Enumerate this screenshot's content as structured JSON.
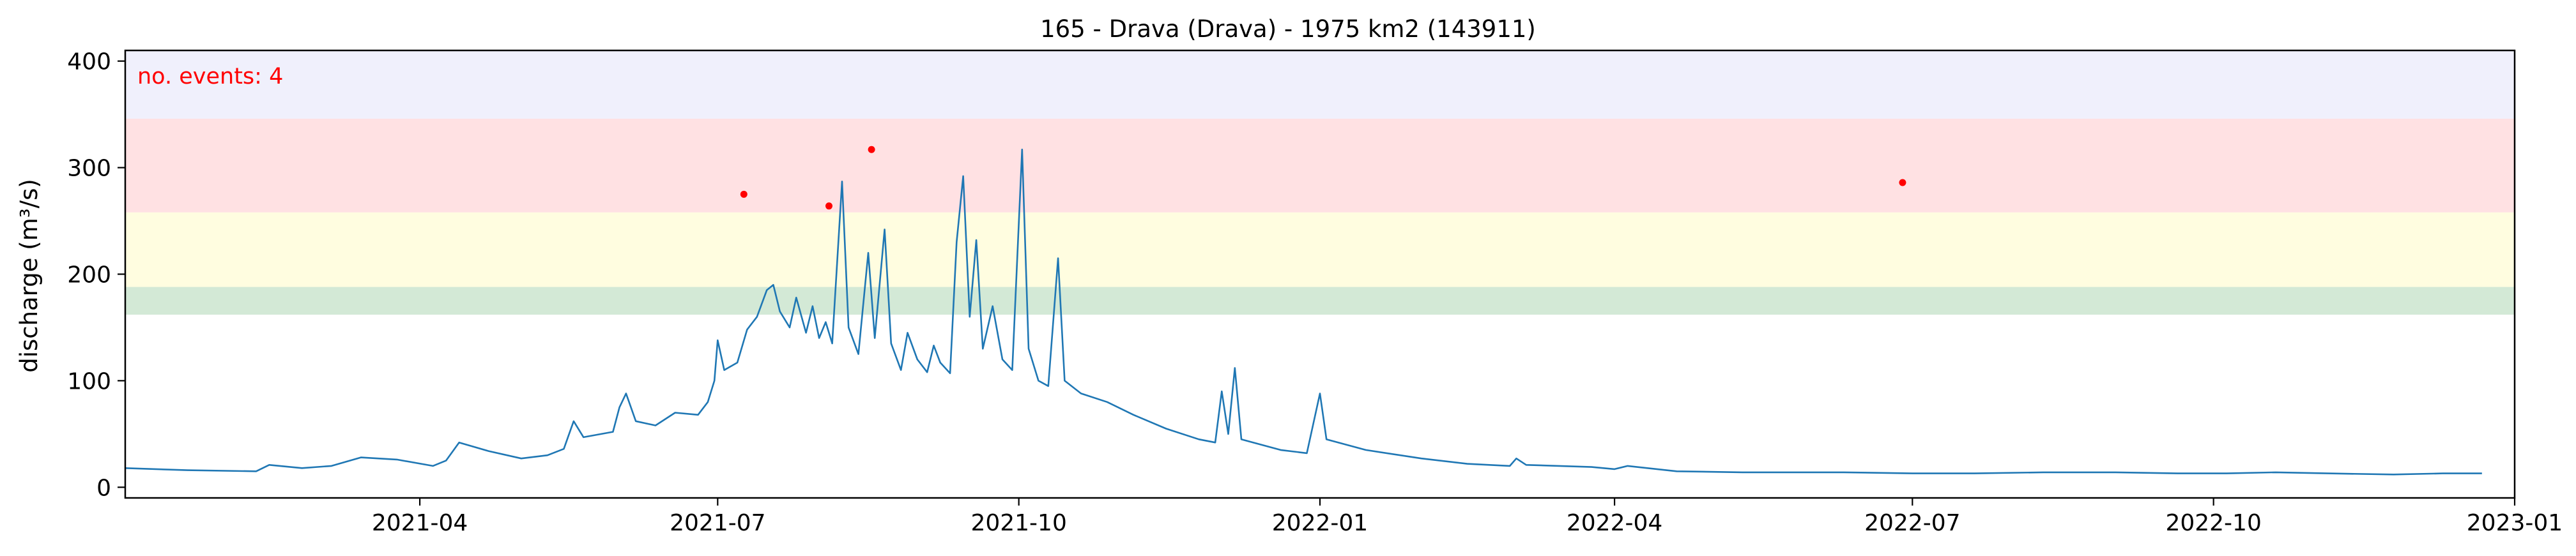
{
  "chart_data": {
    "type": "line",
    "title": "165 - Drava (Drava) - 1975 km2 (143911)",
    "xlabel": "",
    "ylabel": "discharge (m³/s)",
    "xlim": [
      "2021-01-01",
      "2023-01-01"
    ],
    "ylim": [
      -10,
      410
    ],
    "x_ticks": [
      "2021-04",
      "2021-07",
      "2021-10",
      "2022-01",
      "2022-04",
      "2022-07",
      "2022-10",
      "2023-01"
    ],
    "y_ticks": [
      0,
      100,
      200,
      300,
      400
    ],
    "grid": false,
    "annotation": "no. events: 4",
    "line_color": "#1f77b4",
    "bands": [
      {
        "from": 162,
        "to": 188,
        "color": "#d3e9d6"
      },
      {
        "from": 188,
        "to": 258,
        "color": "#fffde0"
      },
      {
        "from": 258,
        "to": 346,
        "color": "#ffe1e3"
      },
      {
        "from": 346,
        "to": 410,
        "color": "#f0f0fc"
      }
    ],
    "events": [
      {
        "date": "2021-07-09",
        "value": 275
      },
      {
        "date": "2021-08-04",
        "value": 264
      },
      {
        "date": "2021-08-17",
        "value": 317
      },
      {
        "date": "2022-06-28",
        "value": 286
      }
    ],
    "event_color": "#ff0000",
    "series": [
      {
        "points": [
          [
            "2021-01-01",
            18
          ],
          [
            "2021-01-20",
            16
          ],
          [
            "2021-02-10",
            15
          ],
          [
            "2021-02-14",
            21
          ],
          [
            "2021-02-24",
            18
          ],
          [
            "2021-03-05",
            20
          ],
          [
            "2021-03-14",
            28
          ],
          [
            "2021-03-25",
            26
          ],
          [
            "2021-04-05",
            20
          ],
          [
            "2021-04-09",
            25
          ],
          [
            "2021-04-13",
            42
          ],
          [
            "2021-04-22",
            34
          ],
          [
            "2021-05-02",
            27
          ],
          [
            "2021-05-10",
            30
          ],
          [
            "2021-05-15",
            36
          ],
          [
            "2021-05-18",
            62
          ],
          [
            "2021-05-21",
            47
          ],
          [
            "2021-05-30",
            52
          ],
          [
            "2021-06-01",
            75
          ],
          [
            "2021-06-03",
            88
          ],
          [
            "2021-06-06",
            62
          ],
          [
            "2021-06-12",
            58
          ],
          [
            "2021-06-18",
            70
          ],
          [
            "2021-06-25",
            68
          ],
          [
            "2021-06-28",
            80
          ],
          [
            "2021-06-30",
            100
          ],
          [
            "2021-07-01",
            138
          ],
          [
            "2021-07-03",
            110
          ],
          [
            "2021-07-07",
            117
          ],
          [
            "2021-07-10",
            148
          ],
          [
            "2021-07-13",
            160
          ],
          [
            "2021-07-16",
            185
          ],
          [
            "2021-07-18",
            190
          ],
          [
            "2021-07-20",
            165
          ],
          [
            "2021-07-23",
            150
          ],
          [
            "2021-07-25",
            178
          ],
          [
            "2021-07-28",
            145
          ],
          [
            "2021-07-30",
            170
          ],
          [
            "2021-08-01",
            140
          ],
          [
            "2021-08-03",
            155
          ],
          [
            "2021-08-05",
            135
          ],
          [
            "2021-08-08",
            287
          ],
          [
            "2021-08-10",
            150
          ],
          [
            "2021-08-13",
            125
          ],
          [
            "2021-08-16",
            220
          ],
          [
            "2021-08-18",
            140
          ],
          [
            "2021-08-21",
            242
          ],
          [
            "2021-08-23",
            135
          ],
          [
            "2021-08-26",
            110
          ],
          [
            "2021-08-28",
            145
          ],
          [
            "2021-08-31",
            120
          ],
          [
            "2021-09-03",
            108
          ],
          [
            "2021-09-05",
            133
          ],
          [
            "2021-09-07",
            117
          ],
          [
            "2021-09-10",
            107
          ],
          [
            "2021-09-12",
            230
          ],
          [
            "2021-09-14",
            292
          ],
          [
            "2021-09-16",
            160
          ],
          [
            "2021-09-18",
            232
          ],
          [
            "2021-09-20",
            130
          ],
          [
            "2021-09-23",
            170
          ],
          [
            "2021-09-26",
            120
          ],
          [
            "2021-09-29",
            110
          ],
          [
            "2021-10-02",
            317
          ],
          [
            "2021-10-04",
            130
          ],
          [
            "2021-10-07",
            100
          ],
          [
            "2021-10-10",
            95
          ],
          [
            "2021-10-13",
            215
          ],
          [
            "2021-10-15",
            100
          ],
          [
            "2021-10-20",
            88
          ],
          [
            "2021-10-28",
            80
          ],
          [
            "2021-11-05",
            68
          ],
          [
            "2021-11-15",
            55
          ],
          [
            "2021-11-25",
            45
          ],
          [
            "2021-11-30",
            42
          ],
          [
            "2021-12-02",
            90
          ],
          [
            "2021-12-04",
            50
          ],
          [
            "2021-12-06",
            112
          ],
          [
            "2021-12-08",
            45
          ],
          [
            "2021-12-20",
            35
          ],
          [
            "2021-12-28",
            32
          ],
          [
            "2022-01-01",
            88
          ],
          [
            "2022-01-03",
            45
          ],
          [
            "2022-01-15",
            35
          ],
          [
            "2022-02-01",
            27
          ],
          [
            "2022-02-15",
            22
          ],
          [
            "2022-02-28",
            20
          ],
          [
            "2022-03-02",
            27
          ],
          [
            "2022-03-05",
            21
          ],
          [
            "2022-03-25",
            19
          ],
          [
            "2022-04-01",
            17
          ],
          [
            "2022-04-05",
            20
          ],
          [
            "2022-04-20",
            15
          ],
          [
            "2022-05-10",
            14
          ],
          [
            "2022-06-10",
            14
          ],
          [
            "2022-07-01",
            13
          ],
          [
            "2022-07-20",
            13
          ],
          [
            "2022-08-10",
            14
          ],
          [
            "2022-09-01",
            14
          ],
          [
            "2022-09-20",
            13
          ],
          [
            "2022-10-05",
            13
          ],
          [
            "2022-10-20",
            14
          ],
          [
            "2022-11-05",
            13
          ],
          [
            "2022-11-25",
            12
          ],
          [
            "2022-12-10",
            13
          ],
          [
            "2022-12-22",
            13
          ]
        ]
      }
    ]
  }
}
